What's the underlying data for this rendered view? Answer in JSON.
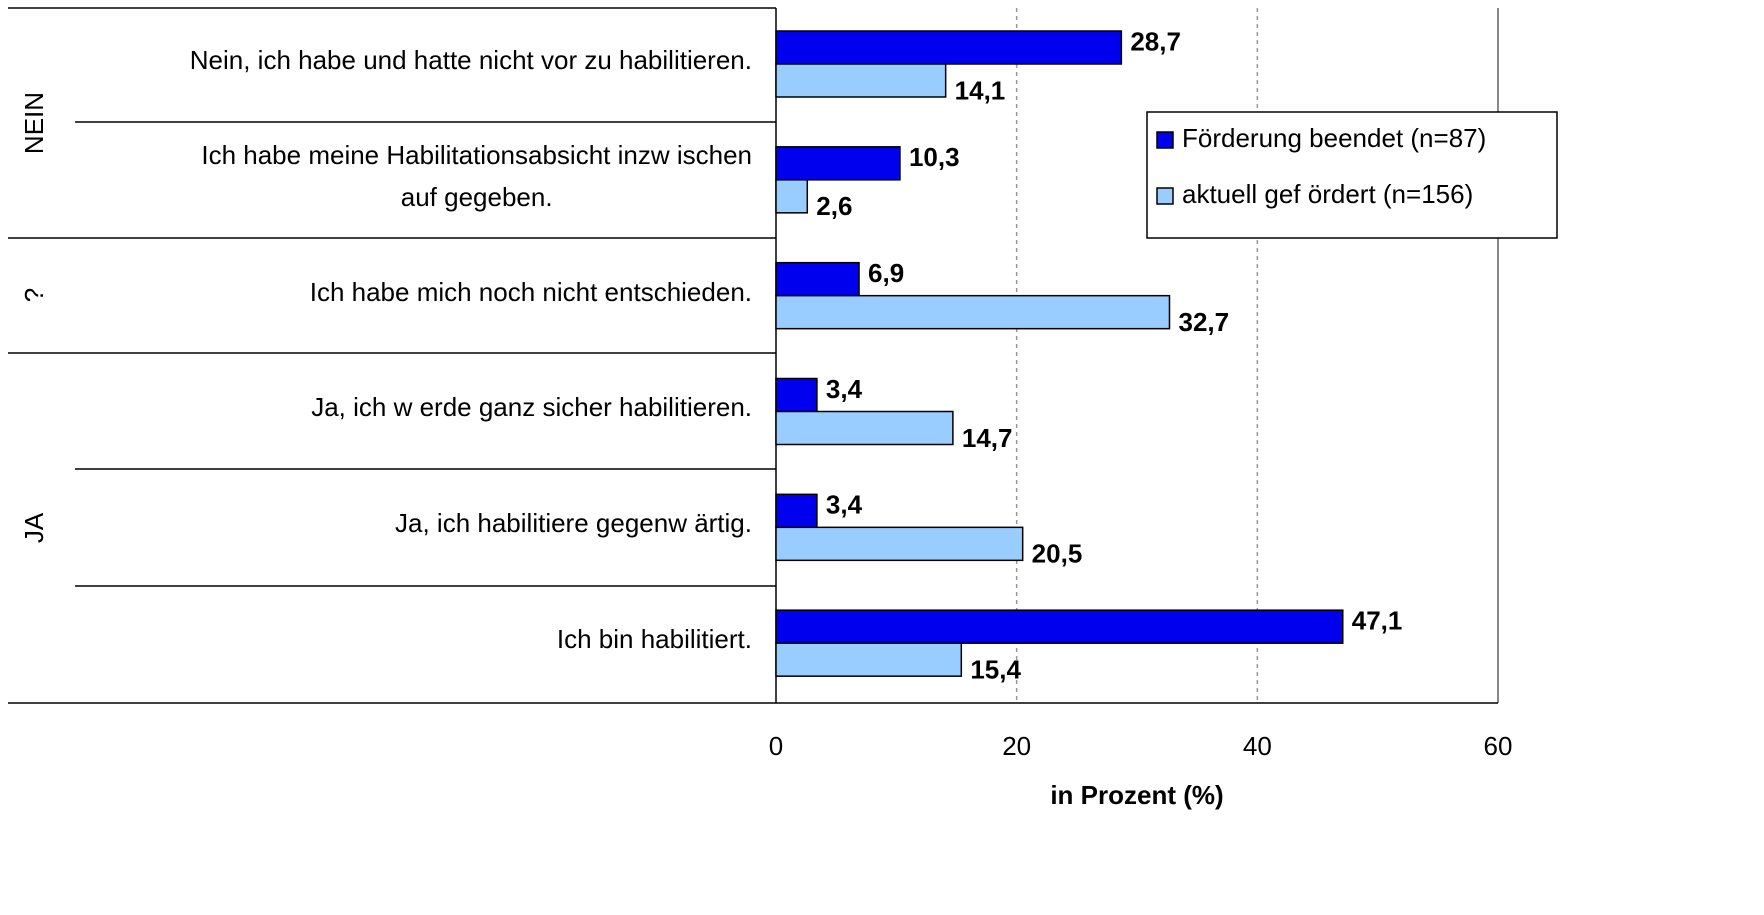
{
  "chart_data": {
    "type": "bar",
    "orientation": "horizontal",
    "x_label": "in Prozent (%)",
    "categories": [
      "Nein, ich habe und hatte nicht vor zu habilitieren.",
      "Ich habe meine Habilitationsabsicht inzw ischen\nauf gegeben.",
      "Ich habe mich noch nicht entschieden.",
      "Ja, ich w erde ganz sicher habilitieren.",
      "Ja, ich habilitiere gegenw ärtig.",
      "Ich bin habilitiert."
    ],
    "groups": [
      "NEIN",
      "?",
      "JA"
    ],
    "series": [
      {
        "name": "Förderung beendet (n=87)",
        "color": "#0000ee",
        "values": [
          28.7,
          10.3,
          6.9,
          3.4,
          3.4,
          47.1
        ],
        "value_labels": [
          "28,7",
          "10,3",
          "6,9",
          "3,4",
          "3,4",
          "47,1"
        ]
      },
      {
        "name": "aktuell gef ördert (n=156)",
        "color": "#99ccff",
        "values": [
          14.1,
          2.6,
          32.7,
          14.7,
          20.5,
          15.4
        ],
        "value_labels": [
          "14,1",
          "2,6",
          "32,7",
          "14,7",
          "20,5",
          "15,4"
        ]
      }
    ],
    "xlim": [
      0,
      60
    ],
    "xticks": [
      0,
      20,
      40,
      60
    ],
    "grid": true,
    "legend": "right"
  }
}
